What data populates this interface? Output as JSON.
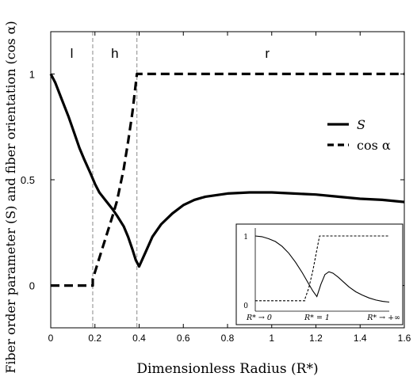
{
  "chart_data": {
    "type": "line",
    "xlabel": "Dimensionless Radius (R*)",
    "ylabel": "Fiber order parameter (S) and fiber orientation (cos α)",
    "xlim": [
      0,
      1.6
    ],
    "ylim": [
      -0.2,
      1.2
    ],
    "x_ticks": [
      "0",
      "0.2",
      "0.4",
      "0.6",
      "0.8",
      "1",
      "1.2",
      "1.4",
      "1.6"
    ],
    "x_tick_values": [
      0,
      0.2,
      0.4,
      0.6,
      0.8,
      1.0,
      1.2,
      1.4,
      1.6
    ],
    "y_ticks": [
      "0",
      "0.5",
      "1"
    ],
    "y_tick_values": [
      0,
      0.5,
      1.0
    ],
    "grid": false,
    "legend_placement": "right, upper-middle",
    "legend": [
      "S",
      "cos α"
    ],
    "regions": [
      {
        "label": "l",
        "x_center": 0.095
      },
      {
        "label": "h",
        "x_center": 0.29
      },
      {
        "label": "r",
        "x_center": 0.98
      }
    ],
    "region_boundaries": [
      0.19,
      0.39
    ],
    "series": [
      {
        "name": "S",
        "style": "solid",
        "x": [
          0,
          0.02,
          0.05,
          0.08,
          0.1,
          0.13,
          0.15,
          0.18,
          0.2,
          0.22,
          0.25,
          0.28,
          0.3,
          0.33,
          0.35,
          0.37,
          0.385,
          0.4,
          0.43,
          0.46,
          0.5,
          0.55,
          0.6,
          0.65,
          0.7,
          0.8,
          0.9,
          1.0,
          1.1,
          1.2,
          1.3,
          1.4,
          1.5,
          1.6
        ],
        "y": [
          1.0,
          0.96,
          0.88,
          0.8,
          0.74,
          0.65,
          0.6,
          0.53,
          0.48,
          0.44,
          0.4,
          0.36,
          0.33,
          0.28,
          0.23,
          0.17,
          0.12,
          0.09,
          0.16,
          0.23,
          0.29,
          0.34,
          0.38,
          0.405,
          0.42,
          0.435,
          0.44,
          0.44,
          0.435,
          0.43,
          0.42,
          0.41,
          0.405,
          0.395
        ]
      },
      {
        "name": "cos α",
        "style": "dashed",
        "x": [
          0,
          0.19,
          0.19,
          0.22,
          0.25,
          0.28,
          0.3,
          0.33,
          0.35,
          0.37,
          0.39,
          0.4,
          0.6,
          0.8,
          1.0,
          1.2,
          1.4,
          1.6
        ],
        "y": [
          0,
          0,
          0.03,
          0.13,
          0.23,
          0.33,
          0.4,
          0.55,
          0.68,
          0.82,
          1.0,
          1.0,
          1.0,
          1.0,
          1.0,
          1.0,
          1.0,
          1.0
        ]
      }
    ],
    "inset": {
      "type": "line",
      "placement": "bottom-right",
      "y_ticks": [
        "0",
        "1"
      ],
      "x_ticks": [
        "R* → 0",
        "R* = 1",
        "R* → +∞"
      ],
      "series": [
        {
          "style": "solid",
          "x": [
            0,
            0.05,
            0.1,
            0.15,
            0.2,
            0.25,
            0.3,
            0.35,
            0.4,
            0.43,
            0.46,
            0.49,
            0.52,
            0.55,
            0.58,
            0.62,
            0.66,
            0.7,
            0.75,
            0.8,
            0.85,
            0.9,
            0.95,
            1.0
          ],
          "y": [
            1.0,
            0.99,
            0.96,
            0.92,
            0.85,
            0.75,
            0.62,
            0.47,
            0.3,
            0.2,
            0.12,
            0.3,
            0.44,
            0.48,
            0.46,
            0.4,
            0.33,
            0.26,
            0.19,
            0.14,
            0.1,
            0.07,
            0.05,
            0.04
          ]
        },
        {
          "style": "dashed",
          "x": [
            0,
            0.37,
            0.37,
            0.4,
            0.43,
            0.46,
            0.48,
            0.5,
            0.7,
            1.0
          ],
          "y": [
            0.06,
            0.06,
            0.08,
            0.25,
            0.5,
            0.8,
            1.0,
            1.0,
            1.0,
            1.0
          ]
        }
      ]
    }
  }
}
